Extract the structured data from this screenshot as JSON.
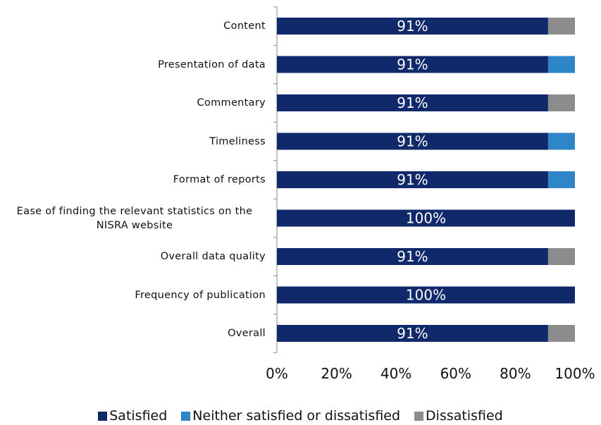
{
  "chart_data": {
    "type": "stacked-bar-horizontal",
    "categories": [
      "Content",
      "Presentation of data",
      "Commentary",
      "Timeliness",
      "Format of reports",
      "Ease of finding the relevant statistics on the NISRA website",
      "Overall data quality",
      "Frequency of publication",
      "Overall"
    ],
    "series": [
      {
        "name": "Satisfied",
        "color": "#10296b",
        "values": [
          91,
          91,
          91,
          91,
          91,
          100,
          91,
          100,
          91
        ],
        "value_labels": [
          "91%",
          "91%",
          "91%",
          "91%",
          "91%",
          "100%",
          "91%",
          "100%",
          "91%"
        ]
      },
      {
        "name": "Neither satisfied or dissatisfied",
        "color": "#2e86c8",
        "values": [
          0,
          9,
          0,
          9,
          9,
          0,
          0,
          0,
          0
        ]
      },
      {
        "name": "Dissatisfied",
        "color": "#8c8c8c",
        "values": [
          9,
          0,
          9,
          0,
          0,
          0,
          9,
          0,
          9
        ]
      }
    ],
    "xlim": [
      0,
      100
    ],
    "xticks": [
      {
        "value": 0,
        "label": "0%"
      },
      {
        "value": 20,
        "label": "20%"
      },
      {
        "value": 40,
        "label": "40%"
      },
      {
        "value": 60,
        "label": "60%"
      },
      {
        "value": 80,
        "label": "80%"
      },
      {
        "value": 100,
        "label": "100%"
      }
    ],
    "legend": "bottom"
  }
}
